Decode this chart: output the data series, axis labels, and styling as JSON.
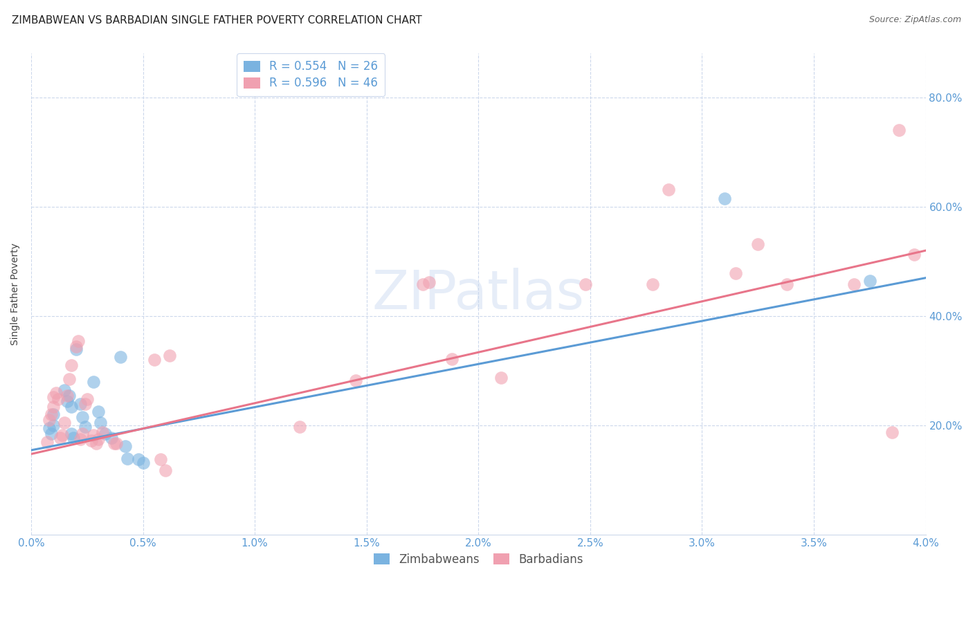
{
  "title": "ZIMBABWEAN VS BARBADIAN SINGLE FATHER POVERTY CORRELATION CHART",
  "source": "Source: ZipAtlas.com",
  "ylabel": "Single Father Poverty",
  "xlabel_ticks": [
    "0.0%",
    "0.5%",
    "1.0%",
    "1.5%",
    "2.0%",
    "2.5%",
    "3.0%",
    "3.5%",
    "4.0%"
  ],
  "ylabel_ticks": [
    "20.0%",
    "40.0%",
    "60.0%",
    "80.0%"
  ],
  "xlim": [
    0.0,
    0.04
  ],
  "ylim": [
    0.0,
    0.88
  ],
  "legend_entries": [
    {
      "label": "R = 0.554   N = 26",
      "color": "#6aaed6"
    },
    {
      "label": "R = 0.596   N = 46",
      "color": "#f08090"
    }
  ],
  "legend_labels_bottom": [
    "Zimbabweans",
    "Barbadians"
  ],
  "zimbabwean_dots": [
    [
      0.0008,
      0.195
    ],
    [
      0.0009,
      0.185
    ],
    [
      0.001,
      0.22
    ],
    [
      0.001,
      0.2
    ],
    [
      0.0015,
      0.265
    ],
    [
      0.0016,
      0.245
    ],
    [
      0.0017,
      0.255
    ],
    [
      0.0018,
      0.235
    ],
    [
      0.0018,
      0.185
    ],
    [
      0.0019,
      0.178
    ],
    [
      0.002,
      0.34
    ],
    [
      0.0022,
      0.24
    ],
    [
      0.0023,
      0.215
    ],
    [
      0.0024,
      0.198
    ],
    [
      0.0028,
      0.28
    ],
    [
      0.003,
      0.225
    ],
    [
      0.0031,
      0.205
    ],
    [
      0.0033,
      0.185
    ],
    [
      0.0036,
      0.178
    ],
    [
      0.004,
      0.325
    ],
    [
      0.0042,
      0.162
    ],
    [
      0.0043,
      0.14
    ],
    [
      0.0048,
      0.138
    ],
    [
      0.005,
      0.132
    ],
    [
      0.031,
      0.615
    ],
    [
      0.0375,
      0.465
    ]
  ],
  "barbadian_dots": [
    [
      0.0007,
      0.17
    ],
    [
      0.0008,
      0.21
    ],
    [
      0.0009,
      0.22
    ],
    [
      0.001,
      0.235
    ],
    [
      0.001,
      0.252
    ],
    [
      0.0011,
      0.26
    ],
    [
      0.0012,
      0.248
    ],
    [
      0.0013,
      0.178
    ],
    [
      0.0014,
      0.182
    ],
    [
      0.0015,
      0.205
    ],
    [
      0.0016,
      0.255
    ],
    [
      0.0017,
      0.285
    ],
    [
      0.0018,
      0.31
    ],
    [
      0.002,
      0.345
    ],
    [
      0.0021,
      0.355
    ],
    [
      0.0022,
      0.175
    ],
    [
      0.0023,
      0.185
    ],
    [
      0.0024,
      0.24
    ],
    [
      0.0025,
      0.248
    ],
    [
      0.0027,
      0.172
    ],
    [
      0.0028,
      0.182
    ],
    [
      0.0029,
      0.168
    ],
    [
      0.003,
      0.175
    ],
    [
      0.0032,
      0.188
    ],
    [
      0.0037,
      0.168
    ],
    [
      0.0038,
      0.168
    ],
    [
      0.0055,
      0.32
    ],
    [
      0.0058,
      0.138
    ],
    [
      0.006,
      0.118
    ],
    [
      0.0062,
      0.328
    ],
    [
      0.012,
      0.198
    ],
    [
      0.0145,
      0.282
    ],
    [
      0.0175,
      0.458
    ],
    [
      0.0178,
      0.462
    ],
    [
      0.0188,
      0.322
    ],
    [
      0.021,
      0.288
    ],
    [
      0.0248,
      0.458
    ],
    [
      0.0278,
      0.458
    ],
    [
      0.0285,
      0.632
    ],
    [
      0.0315,
      0.478
    ],
    [
      0.0325,
      0.532
    ],
    [
      0.0338,
      0.458
    ],
    [
      0.0368,
      0.458
    ],
    [
      0.0385,
      0.188
    ],
    [
      0.0388,
      0.74
    ],
    [
      0.0395,
      0.512
    ]
  ],
  "zim_line_x": [
    0.0,
    0.04
  ],
  "zim_line_y": [
    0.155,
    0.47
  ],
  "barb_line_x": [
    0.0,
    0.04
  ],
  "barb_line_y": [
    0.148,
    0.52
  ],
  "zim_color": "#5b9bd5",
  "barb_color": "#e8758a",
  "zim_dot_color": "#7ab3e0",
  "barb_dot_color": "#f0a0b0",
  "background_color": "#ffffff",
  "grid_color": "#ccd8ec",
  "tick_color": "#5b9bd5",
  "title_fontsize": 11,
  "source_fontsize": 9,
  "axis_label_fontsize": 10,
  "tick_fontsize": 11,
  "legend_fontsize": 12
}
